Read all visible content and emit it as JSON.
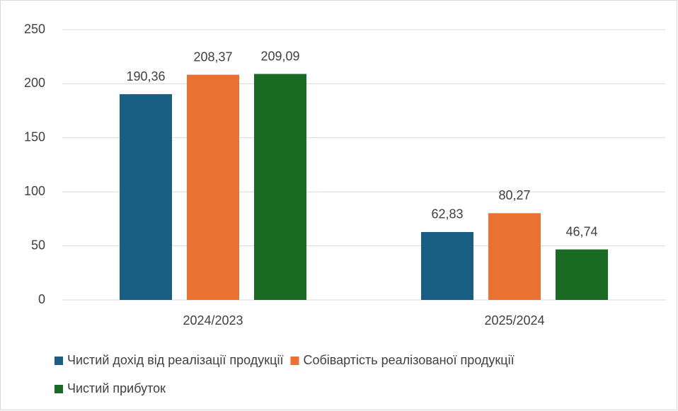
{
  "chart_data": {
    "type": "bar",
    "categories": [
      "2024/2023",
      "2025/2024"
    ],
    "series": [
      {
        "name": "Чистий дохід від реалізації продукції",
        "color": "#195e83",
        "values": [
          190.36,
          62.83
        ],
        "value_labels": [
          "190,36",
          "62,83"
        ]
      },
      {
        "name": "Собівартість реалізованої продукції",
        "color": "#e97132",
        "values": [
          208.37,
          80.27
        ],
        "value_labels": [
          "208,37",
          "80,27"
        ]
      },
      {
        "name": "Чистий прибуток",
        "color": "#196b24",
        "values": [
          209.09,
          46.74
        ],
        "value_labels": [
          "209,09",
          "46,74"
        ]
      }
    ],
    "ylim": [
      0,
      250
    ],
    "yticks": [
      0,
      50,
      100,
      150,
      200,
      250
    ],
    "grid": true,
    "legend": "bottom"
  }
}
